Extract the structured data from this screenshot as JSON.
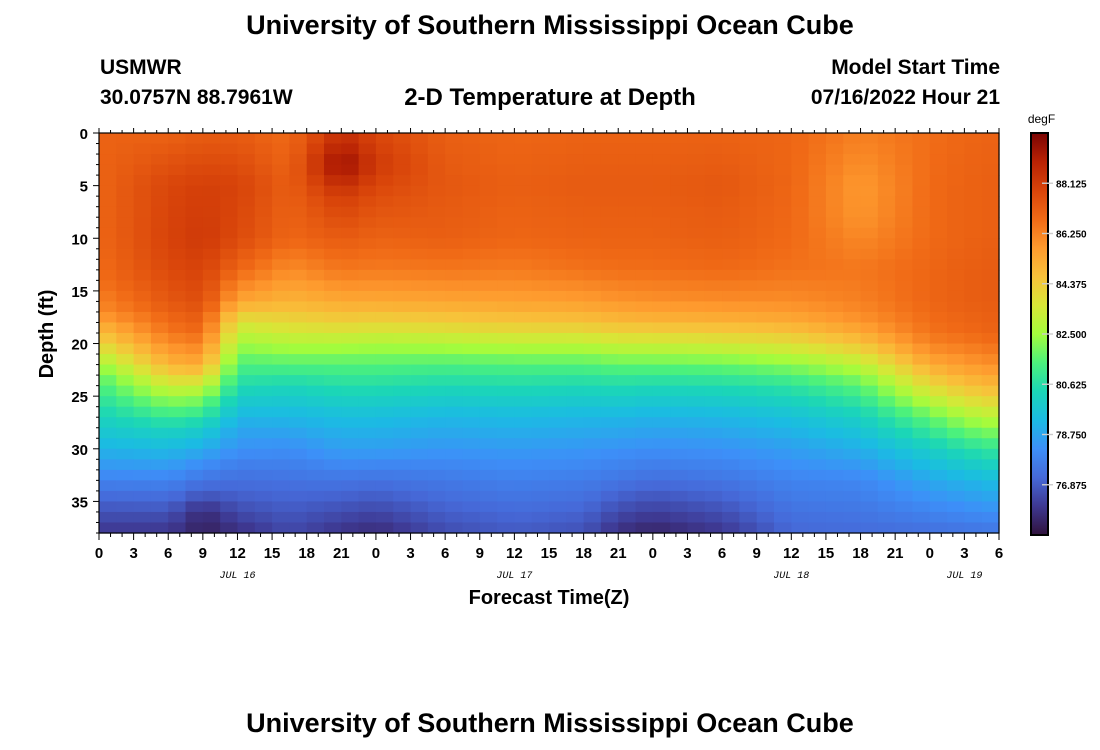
{
  "page": {
    "title": "University of Southern Mississippi Ocean Cube",
    "footer_title": "University of Southern Mississippi Ocean Cube",
    "station_id": "USMWR",
    "location": "30.0757N  88.7961W",
    "subtitle": "2-D Temperature at Depth",
    "model_start_label": "Model Start Time",
    "model_start_value": "07/16/2022 Hour 21"
  },
  "chart_data": {
    "type": "heatmap",
    "title": "2-D Temperature at Depth",
    "xlabel": "Forecast Time(Z)",
    "ylabel": "Depth (ft)",
    "x_range_hours": [
      0,
      78
    ],
    "y_range_ft": [
      0,
      38
    ],
    "x_ticks": [
      {
        "h": 0,
        "label": "0"
      },
      {
        "h": 3,
        "label": "3"
      },
      {
        "h": 6,
        "label": "6"
      },
      {
        "h": 9,
        "label": "9"
      },
      {
        "h": 12,
        "label": "12"
      },
      {
        "h": 15,
        "label": "15"
      },
      {
        "h": 18,
        "label": "18"
      },
      {
        "h": 21,
        "label": "21"
      },
      {
        "h": 24,
        "label": "0"
      },
      {
        "h": 27,
        "label": "3"
      },
      {
        "h": 30,
        "label": "6"
      },
      {
        "h": 33,
        "label": "9"
      },
      {
        "h": 36,
        "label": "12"
      },
      {
        "h": 39,
        "label": "15"
      },
      {
        "h": 42,
        "label": "18"
      },
      {
        "h": 45,
        "label": "21"
      },
      {
        "h": 48,
        "label": "0"
      },
      {
        "h": 51,
        "label": "3"
      },
      {
        "h": 54,
        "label": "6"
      },
      {
        "h": 57,
        "label": "9"
      },
      {
        "h": 60,
        "label": "12"
      },
      {
        "h": 63,
        "label": "15"
      },
      {
        "h": 66,
        "label": "18"
      },
      {
        "h": 69,
        "label": "21"
      },
      {
        "h": 72,
        "label": "0"
      },
      {
        "h": 75,
        "label": "3"
      },
      {
        "h": 78,
        "label": "6"
      }
    ],
    "date_labels": [
      {
        "h": 12,
        "label": "JUL 16"
      },
      {
        "h": 36,
        "label": "JUL 17"
      },
      {
        "h": 60,
        "label": "JUL 18"
      },
      {
        "h": 75,
        "label": "JUL 19"
      }
    ],
    "y_ticks": [
      0,
      5,
      10,
      15,
      20,
      25,
      30,
      35
    ],
    "colorbar": {
      "unit": "degF",
      "range": [
        75.0,
        90.0
      ],
      "tick_values": [
        76.875,
        78.75,
        80.625,
        82.5,
        84.375,
        86.25,
        88.125
      ],
      "tick_labels": [
        "76.875",
        "78.750",
        "80.625",
        "82.500",
        "84.375",
        "86.250",
        "88.125"
      ],
      "colors": [
        "#30123b",
        "#3e3891",
        "#4669d8",
        "#3d8ff8",
        "#1bbbe3",
        "#1bd6b7",
        "#4cf17c",
        "#a4fc3c",
        "#d8e637",
        "#f8c13a",
        "#fe9a2e",
        "#f06a16",
        "#d8440a",
        "#b82204",
        "#7a0403"
      ]
    },
    "grid_dt_hours": 1.5,
    "grid_dz_ft": 1,
    "time_anchor_hours": [
      0,
      6,
      9,
      12,
      16.5,
      21,
      24,
      30,
      36,
      42,
      45,
      48,
      54,
      60,
      66,
      72,
      75,
      78
    ],
    "depth_profiles_degF": [
      {
        "h": 0,
        "depth_ft": [
          0,
          10,
          14,
          17,
          20,
          23,
          26,
          29,
          32,
          35,
          38
        ],
        "temp": [
          87.0,
          86.9,
          86.7,
          86.0,
          84.0,
          81.7,
          80.5,
          79.5,
          78.3,
          77.0,
          76.0
        ]
      },
      {
        "h": 6,
        "depth_ft": [
          0,
          5,
          10,
          13,
          16,
          19,
          22,
          25,
          28,
          31,
          34,
          37,
          38
        ],
        "temp": [
          87.0,
          87.8,
          87.9,
          87.7,
          87.3,
          86.5,
          85.0,
          82.5,
          80.3,
          78.8,
          77.5,
          76.3,
          76.0
        ]
      },
      {
        "h": 9,
        "depth_ft": [
          0,
          5,
          10,
          13,
          16,
          19,
          22,
          25,
          28,
          31,
          34,
          36,
          38
        ],
        "temp": [
          87.2,
          88.0,
          88.2,
          87.9,
          87.6,
          86.8,
          85.3,
          82.3,
          80.0,
          78.4,
          77.0,
          75.7,
          75.4
        ]
      },
      {
        "h": 12,
        "depth_ft": [
          0,
          5,
          10,
          13,
          16,
          18,
          20,
          22,
          24,
          26,
          28,
          30,
          32,
          35,
          38
        ],
        "temp": [
          87.2,
          87.9,
          87.7,
          86.9,
          85.4,
          83.6,
          82.5,
          81.4,
          80.5,
          79.6,
          78.8,
          78.3,
          77.6,
          76.8,
          75.8
        ]
      },
      {
        "h": 16.5,
        "depth_ft": [
          0,
          5,
          10,
          13,
          16,
          18,
          20,
          22,
          24,
          27,
          29,
          31,
          34,
          38
        ],
        "temp": [
          86.8,
          87.1,
          86.9,
          86.0,
          85.0,
          84.0,
          82.8,
          81.5,
          80.3,
          79.2,
          78.5,
          77.9,
          77.2,
          76.4
        ]
      },
      {
        "h": 21,
        "depth_ft": [
          0,
          3,
          6,
          10,
          13,
          16,
          18,
          20,
          22,
          24,
          27,
          30,
          33,
          38
        ],
        "temp": [
          88.5,
          89.6,
          88.1,
          87.2,
          86.5,
          85.3,
          84.2,
          82.8,
          81.5,
          80.6,
          79.4,
          78.6,
          77.5,
          75.9
        ]
      },
      {
        "h": 24,
        "depth_ft": [
          0,
          3,
          6,
          10,
          13,
          16,
          18,
          20,
          22,
          24,
          27,
          30,
          33,
          38
        ],
        "temp": [
          87.8,
          88.2,
          87.6,
          87.0,
          86.4,
          85.3,
          84.1,
          82.7,
          81.5,
          80.6,
          79.4,
          78.6,
          77.4,
          75.7
        ]
      },
      {
        "h": 30,
        "depth_ft": [
          0,
          5,
          10,
          13,
          16,
          18,
          20,
          22,
          24,
          27,
          30,
          33,
          38
        ],
        "temp": [
          87.1,
          87.3,
          87.1,
          86.5,
          85.4,
          84.3,
          82.8,
          81.4,
          80.4,
          79.2,
          78.4,
          77.6,
          76.5
        ]
      },
      {
        "h": 36,
        "depth_ft": [
          0,
          5,
          10,
          13,
          16,
          18,
          20,
          22,
          24,
          27,
          30,
          33,
          38
        ],
        "temp": [
          86.9,
          87.1,
          86.9,
          86.4,
          85.5,
          84.5,
          83.0,
          81.5,
          80.5,
          79.3,
          78.5,
          77.8,
          76.8
        ]
      },
      {
        "h": 42,
        "depth_ft": [
          0,
          5,
          10,
          13,
          16,
          18,
          20,
          22,
          24,
          27,
          30,
          33,
          38
        ],
        "temp": [
          87.0,
          87.2,
          87.0,
          86.6,
          85.6,
          84.6,
          83.0,
          81.5,
          80.4,
          79.2,
          78.4,
          77.7,
          76.6
        ]
      },
      {
        "h": 45,
        "depth_ft": [
          0,
          5,
          10,
          13,
          16,
          18,
          20,
          22,
          24,
          27,
          30,
          33,
          38
        ],
        "temp": [
          87.0,
          87.2,
          87.0,
          86.7,
          85.8,
          84.8,
          83.3,
          81.7,
          80.5,
          79.2,
          78.3,
          77.5,
          75.8
        ]
      },
      {
        "h": 48,
        "depth_ft": [
          0,
          5,
          10,
          13,
          16,
          18,
          20,
          22,
          24,
          27,
          30,
          33,
          38
        ],
        "temp": [
          87.0,
          87.2,
          87.0,
          86.7,
          85.9,
          84.9,
          83.3,
          81.7,
          80.4,
          79.1,
          78.2,
          77.3,
          75.5
        ]
      },
      {
        "h": 54,
        "depth_ft": [
          0,
          5,
          10,
          13,
          16,
          18,
          20,
          22,
          24,
          27,
          30,
          33,
          38
        ],
        "temp": [
          87.0,
          87.3,
          87.1,
          86.8,
          86.0,
          85.0,
          83.5,
          81.8,
          80.5,
          79.2,
          78.3,
          77.5,
          76.0
        ]
      },
      {
        "h": 60,
        "depth_ft": [
          0,
          5,
          10,
          13,
          16,
          18,
          20,
          22,
          24,
          27,
          30,
          33,
          38
        ],
        "temp": [
          86.9,
          86.9,
          86.8,
          86.6,
          86.0,
          85.2,
          83.8,
          82.2,
          80.8,
          79.5,
          78.6,
          77.9,
          77.1
        ]
      },
      {
        "h": 66,
        "depth_ft": [
          0,
          5,
          8,
          10,
          13,
          16,
          18,
          20,
          22,
          24,
          27,
          30,
          33,
          38
        ],
        "temp": [
          86.3,
          85.7,
          85.8,
          86.1,
          86.5,
          86.3,
          85.8,
          84.6,
          83.0,
          81.6,
          80.1,
          79.0,
          78.0,
          77.2
        ]
      },
      {
        "h": 72,
        "depth_ft": [
          0,
          5,
          10,
          13,
          16,
          19,
          21,
          23,
          25,
          27,
          30,
          33,
          38
        ],
        "temp": [
          86.7,
          86.8,
          86.8,
          86.9,
          86.9,
          86.6,
          85.8,
          84.6,
          83.2,
          81.7,
          80.0,
          78.8,
          77.3
        ]
      },
      {
        "h": 75,
        "depth_ft": [
          0,
          5,
          10,
          13,
          16,
          19,
          21,
          23,
          25,
          27,
          30,
          33,
          38
        ],
        "temp": [
          86.9,
          87.0,
          87.0,
          87.1,
          87.1,
          86.8,
          86.1,
          85.2,
          84.0,
          82.6,
          80.6,
          79.1,
          77.4
        ]
      },
      {
        "h": 78,
        "depth_ft": [
          0,
          5,
          10,
          13,
          16,
          19,
          21,
          23,
          25,
          27,
          30,
          33,
          38
        ],
        "temp": [
          87.0,
          87.1,
          87.1,
          87.2,
          87.2,
          87.0,
          86.4,
          85.5,
          84.4,
          83.0,
          81.0,
          79.4,
          77.5
        ]
      }
    ]
  }
}
